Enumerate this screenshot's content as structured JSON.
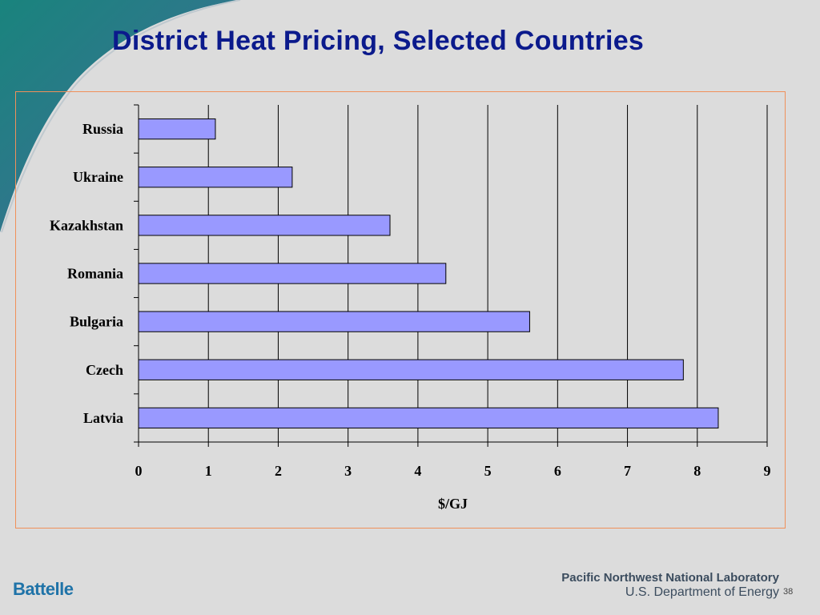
{
  "slide": {
    "title": "District Heat Pricing, Selected Countries",
    "slide_number": "38"
  },
  "footer": {
    "left_logo": "Battelle",
    "org_name": "Pacific Northwest National Laboratory",
    "department": "U.S. Department of Energy"
  },
  "colors": {
    "title": "#0b1a8c",
    "bar_fill": "#9999ff",
    "bar_stroke": "#000000",
    "frame_border": "#f0905a",
    "swoosh": "#1f7a7a",
    "background": "#dcdcdc"
  },
  "chart_data": {
    "type": "bar",
    "orientation": "horizontal",
    "categories": [
      "Russia",
      "Ukraine",
      "Kazakhstan",
      "Romania",
      "Bulgaria",
      "Czech",
      "Latvia"
    ],
    "values": [
      1.1,
      2.2,
      3.6,
      4.4,
      5.6,
      7.8,
      8.3
    ],
    "xlabel": "$/GJ",
    "xlim": [
      0,
      9
    ],
    "xticks": [
      "0",
      "1",
      "2",
      "3",
      "4",
      "5",
      "6",
      "7",
      "8",
      "9"
    ],
    "grid": "vertical major gridlines",
    "legend": "none"
  }
}
